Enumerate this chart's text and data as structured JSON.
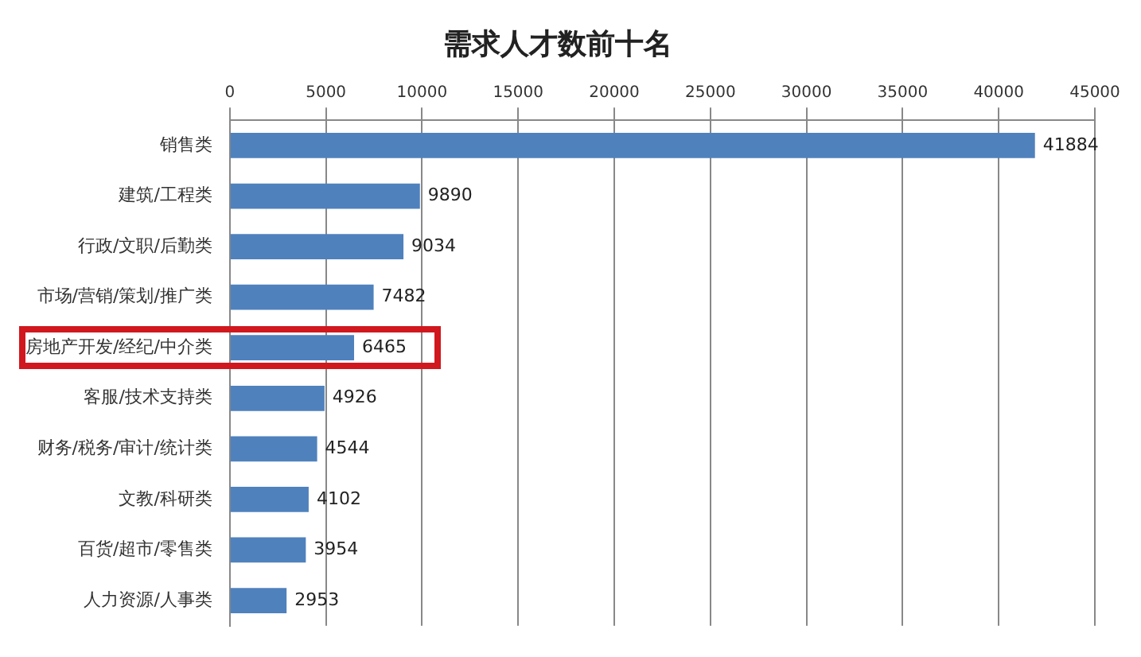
{
  "chart_data": {
    "type": "bar",
    "orientation": "horizontal",
    "title": "需求人才数前十名",
    "categories": [
      "销售类",
      "建筑/工程类",
      "行政/文职/后勤类",
      "市场/营销/策划/推广类",
      "房地产开发/经纪/中介类",
      "客服/技术支持类",
      "财务/税务/审计/统计类",
      "文教/科研类",
      "百货/超市/零售类",
      "人力资源/人事类"
    ],
    "values": [
      41884,
      9890,
      9034,
      7482,
      6465,
      4926,
      4544,
      4102,
      3954,
      2953
    ],
    "color": "#4f81bd",
    "xlim": [
      0,
      45000
    ],
    "xticks": [
      0,
      5000,
      10000,
      15000,
      20000,
      25000,
      30000,
      35000,
      40000,
      45000
    ],
    "grid": "x",
    "data_labels": true,
    "legend": false
  }
}
